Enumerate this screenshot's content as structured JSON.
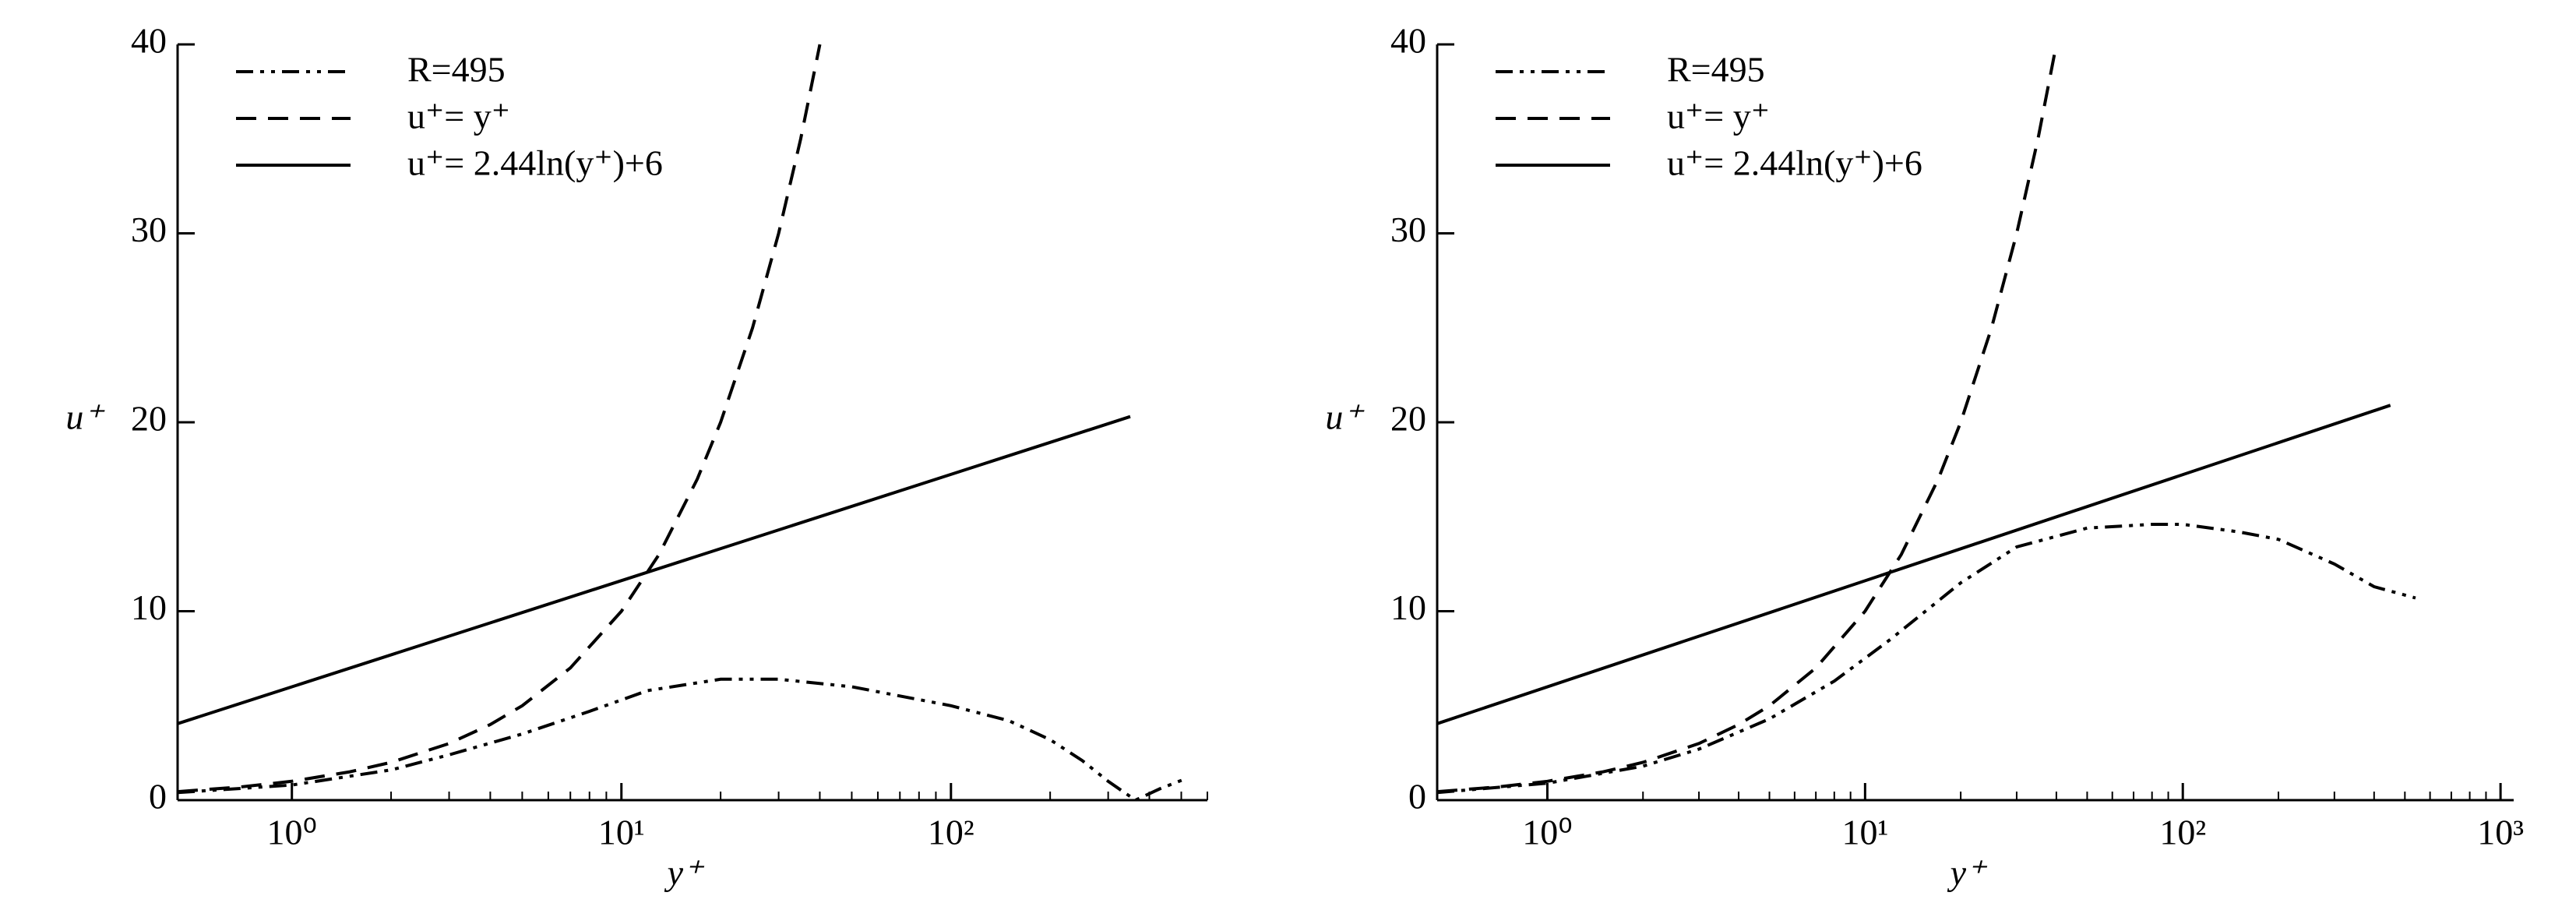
{
  "chart_data": [
    {
      "type": "line",
      "xlabel": "y⁺",
      "ylabel": "u⁺",
      "xscale": "log",
      "legend": "upper left",
      "xlim": [
        0.45,
        600
      ],
      "ylim": [
        0,
        40
      ],
      "xticks": [
        {
          "value": 1,
          "label": "10⁰"
        },
        {
          "value": 10,
          "label": "10¹"
        },
        {
          "value": 100,
          "label": "10²"
        }
      ],
      "yticks": [
        0,
        10,
        20,
        30,
        40
      ],
      "series": [
        {
          "name": "R=495",
          "color": "#000000",
          "style": "dashdotdot",
          "x": [
            0.45,
            1,
            2,
            3,
            5,
            8,
            12,
            20,
            30,
            50,
            100,
            150,
            200,
            250,
            300,
            363,
            430,
            510
          ],
          "values": [
            0.4,
            0.8,
            1.6,
            2.4,
            3.5,
            4.7,
            5.8,
            6.4,
            6.4,
            6.0,
            5.0,
            4.2,
            3.2,
            2.1,
            1.0,
            0,
            0.6,
            1.1
          ]
        },
        {
          "name": "u⁺= y⁺",
          "color": "#000000",
          "style": "dashed",
          "x": [
            0.45,
            0.7,
            1,
            1.5,
            2,
            3,
            4,
            5,
            7,
            10,
            13,
            17,
            20,
            25,
            30,
            35,
            40
          ],
          "values": [
            0.45,
            0.7,
            1,
            1.5,
            2,
            3,
            4,
            5,
            7,
            10,
            13,
            17,
            20,
            25,
            30,
            35,
            40
          ]
        },
        {
          "name": "u⁺= 2.44ln(y⁺)+6",
          "color": "#000000",
          "style": "solid",
          "x": [
            0.45,
            350
          ],
          "values": [
            4.05,
            20.3
          ]
        }
      ]
    },
    {
      "type": "line",
      "xlabel": "y⁺",
      "ylabel": "u⁺",
      "xscale": "log",
      "legend": "upper left",
      "xlim": [
        0.45,
        1100
      ],
      "ylim": [
        0,
        40
      ],
      "xticks": [
        {
          "value": 1,
          "label": "10⁰"
        },
        {
          "value": 10,
          "label": "10¹"
        },
        {
          "value": 100,
          "label": "10²"
        },
        {
          "value": 1000,
          "label": "10³"
        }
      ],
      "yticks": [
        0,
        10,
        20,
        30,
        40
      ],
      "series": [
        {
          "name": "R=495",
          "color": "#000000",
          "style": "dashdotdot",
          "x": [
            0.45,
            1,
            2,
            3,
            5,
            8,
            12,
            20,
            30,
            50,
            80,
            100,
            150,
            200,
            300,
            400,
            540
          ],
          "values": [
            0.4,
            0.9,
            1.8,
            2.7,
            4.3,
            6.3,
            8.5,
            11.5,
            13.4,
            14.4,
            14.6,
            14.6,
            14.2,
            13.8,
            12.5,
            11.3,
            10.7
          ]
        },
        {
          "name": "u⁺= y⁺",
          "color": "#000000",
          "style": "dashed",
          "x": [
            0.45,
            0.7,
            1,
            1.5,
            2,
            3,
            4,
            5,
            7,
            10,
            13,
            17,
            20,
            25,
            30,
            35,
            40
          ],
          "values": [
            0.45,
            0.7,
            1,
            1.5,
            2,
            3,
            4,
            5,
            7,
            10,
            13,
            17,
            20,
            25,
            30,
            35,
            40
          ]
        },
        {
          "name": "u⁺= 2.44ln(y⁺)+6",
          "color": "#000000",
          "style": "solid",
          "x": [
            0.45,
            450
          ],
          "values": [
            4.05,
            20.9
          ]
        }
      ]
    }
  ]
}
